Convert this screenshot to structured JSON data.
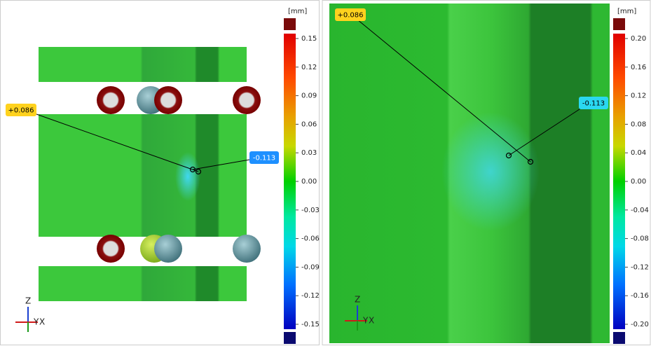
{
  "left_panel": {
    "unit": "[mm]",
    "scale_labels": [
      "0.15",
      "0.12",
      "0.09",
      "0.06",
      "0.03",
      "0.00",
      "-0.03",
      "-0.06",
      "-0.09",
      "-0.12",
      "-0.15"
    ],
    "callouts": [
      "+0.086",
      "-0.113"
    ],
    "axes": {
      "z": "Z",
      "y": "Y",
      "x": "X"
    }
  },
  "right_panel": {
    "unit": "[mm]",
    "scale_labels": [
      "0.20",
      "0.16",
      "0.12",
      "0.08",
      "0.04",
      "0.00",
      "-0.04",
      "-0.08",
      "-0.12",
      "-0.16",
      "-0.20"
    ],
    "callouts": [
      "+0.086",
      "-0.113"
    ],
    "axes": {
      "z": "Z",
      "y": "Y",
      "x": "X"
    }
  }
}
